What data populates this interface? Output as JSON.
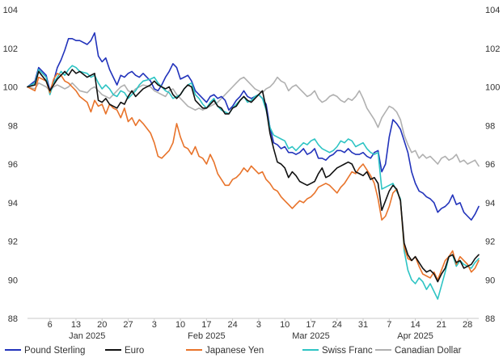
{
  "chart_data": {
    "type": "line",
    "ylim": [
      88,
      104
    ],
    "yticks": [
      88,
      90,
      92,
      94,
      96,
      98,
      100,
      102,
      104
    ],
    "x_day_ticks": [
      {
        "label": "6",
        "x": 6
      },
      {
        "label": "13",
        "x": 13
      },
      {
        "label": "20",
        "x": 20
      },
      {
        "label": "27",
        "x": 27
      },
      {
        "label": "3",
        "x": 34
      },
      {
        "label": "10",
        "x": 41
      },
      {
        "label": "17",
        "x": 48
      },
      {
        "label": "24",
        "x": 55
      },
      {
        "label": "3",
        "x": 62
      },
      {
        "label": "10",
        "x": 69
      },
      {
        "label": "17",
        "x": 76
      },
      {
        "label": "24",
        "x": 83
      },
      {
        "label": "31",
        "x": 90
      },
      {
        "label": "7",
        "x": 97
      },
      {
        "label": "14",
        "x": 104
      },
      {
        "label": "21",
        "x": 111
      },
      {
        "label": "28",
        "x": 118
      }
    ],
    "x_month_labels": [
      {
        "label": "Jan 2025",
        "x": 16
      },
      {
        "label": "Feb 2025",
        "x": 48
      },
      {
        "label": "Mar 2025",
        "x": 76
      },
      {
        "label": "Apr 2025",
        "x": 104
      }
    ],
    "xlim": [
      0,
      121
    ],
    "x": [
      0,
      2,
      3,
      5,
      6,
      7,
      8,
      9,
      10,
      11,
      12,
      13,
      14,
      16,
      17,
      18,
      19,
      20,
      21,
      22,
      23,
      24,
      25,
      26,
      27,
      28,
      29,
      30,
      31,
      33,
      34,
      35,
      36,
      37,
      38,
      39,
      40,
      41,
      42,
      43,
      44,
      45,
      46,
      47,
      48,
      49,
      50,
      51,
      52,
      53,
      54,
      55,
      56,
      57,
      58,
      59,
      60,
      61,
      62,
      63,
      64,
      65,
      66,
      67,
      68,
      69,
      70,
      71,
      72,
      73,
      74,
      75,
      76,
      77,
      78,
      79,
      80,
      81,
      82,
      83,
      84,
      85,
      86,
      87,
      88,
      89,
      90,
      91,
      92,
      93,
      94,
      95,
      96,
      97,
      98,
      99,
      100,
      101,
      102,
      103,
      104,
      105,
      106,
      107,
      108,
      109,
      110,
      111,
      112,
      113,
      114,
      115,
      116,
      117,
      118,
      119,
      120,
      121
    ],
    "series": [
      {
        "name": "Pound Sterling",
        "color": "#2233bb",
        "values": [
          100.0,
          100.3,
          101.0,
          100.6,
          99.8,
          100.3,
          101.0,
          101.4,
          101.9,
          102.5,
          102.5,
          102.4,
          102.4,
          102.2,
          102.4,
          102.8,
          101.6,
          101.3,
          101.5,
          100.9,
          100.5,
          100.1,
          100.6,
          100.5,
          100.7,
          100.8,
          100.6,
          100.5,
          100.7,
          100.3,
          99.9,
          99.8,
          100.1,
          100.5,
          100.8,
          101.2,
          101.0,
          100.4,
          100.5,
          100.6,
          100.3,
          99.8,
          99.6,
          99.4,
          99.2,
          99.5,
          99.6,
          99.4,
          99.5,
          99.3,
          98.8,
          99.0,
          99.3,
          99.5,
          99.8,
          99.5,
          99.4,
          99.5,
          99.6,
          99.4,
          99.1,
          97.9,
          97.1,
          97.0,
          96.8,
          96.9,
          96.6,
          96.6,
          96.5,
          96.6,
          96.8,
          96.5,
          96.6,
          96.8,
          96.3,
          96.3,
          96.2,
          96.4,
          96.5,
          96.7,
          96.7,
          96.6,
          96.8,
          96.6,
          96.5,
          96.5,
          96.6,
          96.4,
          96.3,
          96.6,
          96.7,
          95.6,
          96.0,
          97.4,
          98.3,
          98.1,
          97.8,
          97.2,
          96.6,
          95.6,
          95.0,
          94.6,
          94.5,
          94.3,
          94.2,
          94.0,
          93.5,
          93.7,
          93.8,
          94.0,
          94.4,
          93.9,
          94.0,
          93.5,
          93.3,
          93.1,
          93.4,
          93.8
        ]
      },
      {
        "name": "Euro",
        "color": "#111111",
        "values": [
          100.0,
          100.1,
          100.8,
          100.3,
          99.8,
          100.1,
          100.4,
          100.6,
          100.8,
          100.6,
          100.9,
          100.7,
          100.8,
          100.5,
          100.6,
          100.7,
          99.3,
          99.2,
          99.4,
          99.1,
          99.0,
          98.9,
          99.2,
          99.1,
          99.5,
          99.8,
          99.5,
          99.7,
          99.9,
          100.1,
          100.3,
          100.1,
          100.0,
          99.9,
          100.0,
          99.6,
          99.4,
          99.6,
          99.9,
          100.1,
          100.0,
          99.3,
          99.1,
          98.9,
          98.9,
          99.1,
          99.3,
          99.0,
          98.9,
          98.6,
          98.6,
          98.9,
          99.0,
          99.3,
          99.5,
          99.3,
          99.2,
          99.4,
          99.6,
          99.8,
          98.9,
          97.6,
          96.8,
          96.1,
          96.0,
          95.8,
          95.3,
          95.6,
          95.4,
          95.1,
          95.0,
          94.9,
          95.0,
          95.1,
          95.5,
          95.8,
          95.3,
          95.4,
          95.6,
          95.8,
          95.9,
          96.0,
          96.1,
          96.0,
          95.6,
          95.5,
          95.4,
          95.6,
          95.2,
          95.3,
          95.0,
          93.6,
          94.1,
          94.6,
          94.9,
          94.7,
          94.1,
          91.9,
          91.3,
          91.0,
          91.2,
          90.9,
          90.6,
          90.4,
          90.5,
          90.3,
          89.9,
          90.3,
          90.6,
          91.2,
          91.3,
          90.9,
          91.0,
          90.6,
          90.7,
          90.8,
          91.1,
          91.3
        ]
      },
      {
        "name": "Japanese Yen",
        "color": "#e8732a",
        "values": [
          100.0,
          99.8,
          100.5,
          100.3,
          99.7,
          100.4,
          100.7,
          100.6,
          100.3,
          100.2,
          100.0,
          99.8,
          99.5,
          99.2,
          98.7,
          99.3,
          99.0,
          99.1,
          98.6,
          99.1,
          98.9,
          98.8,
          98.4,
          98.9,
          98.2,
          98.4,
          98.0,
          98.3,
          98.1,
          97.6,
          97.1,
          96.4,
          96.3,
          96.5,
          96.7,
          97.1,
          98.1,
          97.4,
          96.9,
          96.8,
          96.5,
          96.9,
          96.4,
          96.3,
          96.0,
          96.5,
          96.1,
          95.5,
          95.2,
          94.9,
          94.9,
          95.2,
          95.3,
          95.5,
          95.8,
          95.6,
          95.9,
          95.7,
          95.5,
          95.6,
          95.2,
          95.0,
          94.7,
          94.6,
          94.3,
          94.1,
          93.9,
          93.7,
          93.9,
          94.1,
          94.0,
          94.2,
          94.3,
          94.5,
          94.8,
          94.9,
          95.0,
          94.9,
          94.7,
          94.5,
          94.8,
          95.0,
          95.3,
          95.6,
          95.5,
          95.8,
          96.0,
          95.7,
          95.4,
          95.0,
          94.2,
          93.1,
          93.3,
          93.8,
          94.5,
          94.7,
          94.1,
          91.7,
          91.1,
          91.0,
          91.2,
          90.7,
          90.3,
          90.2,
          90.1,
          90.4,
          90.0,
          90.5,
          91.0,
          91.2,
          91.5,
          90.8,
          91.2,
          91.0,
          90.8,
          90.4,
          90.6,
          91.0
        ]
      },
      {
        "name": "Swiss Franc",
        "color": "#2ec4c4",
        "values": [
          100.0,
          100.2,
          100.9,
          100.5,
          99.6,
          100.2,
          100.5,
          100.8,
          100.6,
          100.9,
          101.1,
          101.0,
          100.8,
          100.7,
          100.5,
          100.6,
          100.2,
          99.9,
          100.1,
          99.9,
          99.6,
          99.5,
          99.8,
          99.7,
          99.4,
          99.6,
          99.8,
          100.1,
          100.3,
          100.4,
          100.5,
          100.2,
          100.0,
          99.8,
          99.7,
          99.4,
          99.5,
          99.6,
          99.9,
          100.1,
          100.2,
          99.6,
          99.4,
          99.1,
          98.9,
          99.2,
          99.4,
          99.0,
          98.8,
          98.7,
          98.6,
          98.9,
          99.1,
          99.3,
          99.5,
          99.2,
          99.3,
          99.5,
          99.6,
          99.4,
          98.8,
          97.9,
          97.5,
          97.4,
          97.3,
          97.2,
          96.8,
          96.9,
          96.7,
          96.9,
          97.1,
          97.0,
          97.2,
          97.3,
          97.0,
          96.8,
          96.7,
          96.6,
          96.7,
          96.9,
          97.2,
          97.1,
          97.3,
          97.2,
          96.9,
          97.0,
          97.1,
          96.8,
          96.6,
          96.5,
          96.6,
          94.7,
          94.8,
          94.9,
          95.0,
          94.6,
          94.2,
          91.5,
          90.5,
          90.0,
          89.8,
          90.1,
          89.9,
          89.5,
          89.8,
          89.4,
          89.0,
          89.7,
          90.4,
          91.2,
          91.3,
          90.7,
          91.0,
          90.8,
          90.7,
          90.6,
          90.9,
          91.1
        ]
      },
      {
        "name": "Canadian Dollar",
        "color": "#b0b0b0",
        "values": [
          100.0,
          99.9,
          100.2,
          100.0,
          99.8,
          100.0,
          100.1,
          100.0,
          99.9,
          100.0,
          100.2,
          100.0,
          99.8,
          99.7,
          99.9,
          100.0,
          99.8,
          99.6,
          99.5,
          99.4,
          99.6,
          99.8,
          100.0,
          100.1,
          99.8,
          99.7,
          99.9,
          100.0,
          100.1,
          100.0,
          99.8,
          99.7,
          99.6,
          99.5,
          99.8,
          99.9,
          99.6,
          99.4,
          99.2,
          99.0,
          98.9,
          98.8,
          98.9,
          98.8,
          98.9,
          99.0,
          99.1,
          99.2,
          99.4,
          99.6,
          99.8,
          100.0,
          100.2,
          100.4,
          100.5,
          100.3,
          100.1,
          99.9,
          99.8,
          99.7,
          99.9,
          100.0,
          100.2,
          100.5,
          100.3,
          100.2,
          99.8,
          100.0,
          100.1,
          99.9,
          99.7,
          99.5,
          99.6,
          99.8,
          99.4,
          99.2,
          99.3,
          99.5,
          99.6,
          99.5,
          99.3,
          99.2,
          99.4,
          99.3,
          99.5,
          99.8,
          99.4,
          98.9,
          98.6,
          98.3,
          97.9,
          98.4,
          98.7,
          99.0,
          98.9,
          98.7,
          98.3,
          97.5,
          97.0,
          96.6,
          96.7,
          96.3,
          96.5,
          96.3,
          96.4,
          96.2,
          96.0,
          96.3,
          96.4,
          96.2,
          96.3,
          96.5,
          96.1,
          96.2,
          96.0,
          96.1,
          96.2,
          95.9
        ]
      }
    ],
    "legend_position": "bottom",
    "grid": false,
    "title": "",
    "xlabel": "",
    "ylabel": ""
  }
}
